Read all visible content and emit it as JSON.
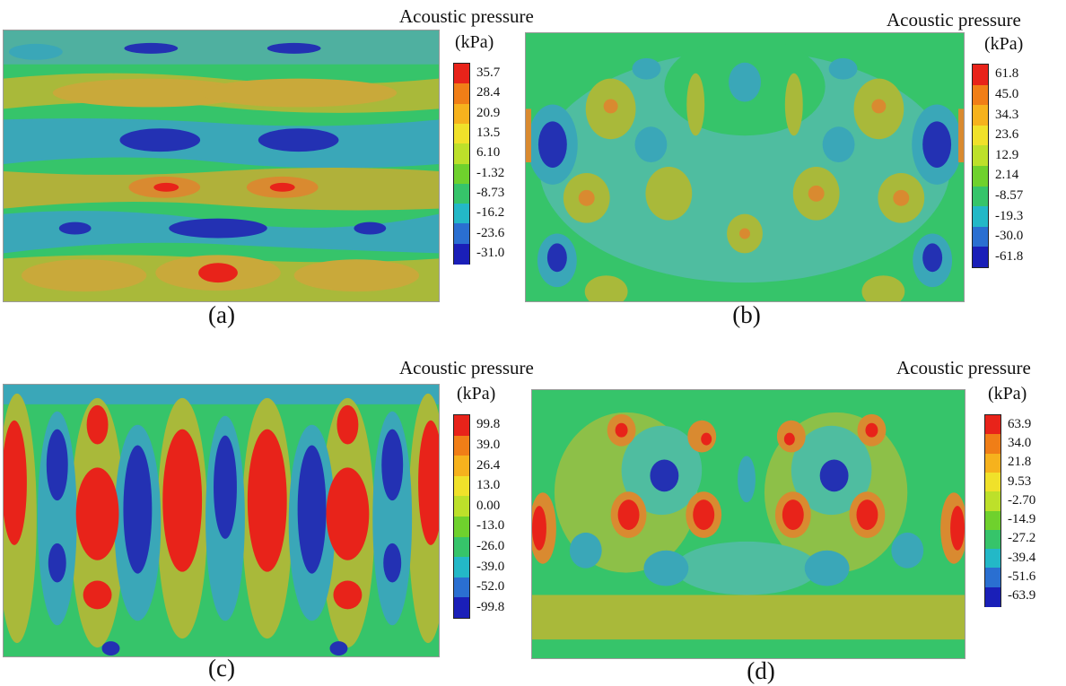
{
  "palette": [
    "#1a1fb8",
    "#2a6fd1",
    "#23b8c7",
    "#36c46a",
    "#6fd12d",
    "#bde02a",
    "#f0e12a",
    "#f6b21d",
    "#f07e17",
    "#e8231a"
  ],
  "panels": [
    {
      "id": "a",
      "caption": "(a)",
      "legend_title": "Acoustic pressure",
      "unit": "(kPa)",
      "ticks": [
        "35.7",
        "28.4",
        "20.9",
        "13.5",
        "6.10",
        "-1.32",
        "-8.73",
        "-16.2",
        "-23.6",
        "-31.0"
      ]
    },
    {
      "id": "b",
      "caption": "(b)",
      "legend_title": "Acoustic pressure",
      "unit": "(kPa)",
      "ticks": [
        "61.8",
        "45.0",
        "34.3",
        "23.6",
        "12.9",
        "2.14",
        "-8.57",
        "-19.3",
        "-30.0",
        "-61.8"
      ]
    },
    {
      "id": "c",
      "caption": "(c)",
      "legend_title": "Acoustic pressure",
      "unit": "(kPa)",
      "ticks": [
        "99.8",
        "39.0",
        "26.4",
        "13.0",
        "0.00",
        "-13.0",
        "-26.0",
        "-39.0",
        "-52.0",
        "-99.8"
      ]
    },
    {
      "id": "d",
      "caption": "(d)",
      "legend_title": "Acoustic pressure",
      "unit": "(kPa)",
      "ticks": [
        "63.9",
        "34.0",
        "21.8",
        "9.53",
        "-2.70",
        "-14.9",
        "-27.2",
        "-39.4",
        "-51.6",
        "-63.9"
      ]
    }
  ]
}
